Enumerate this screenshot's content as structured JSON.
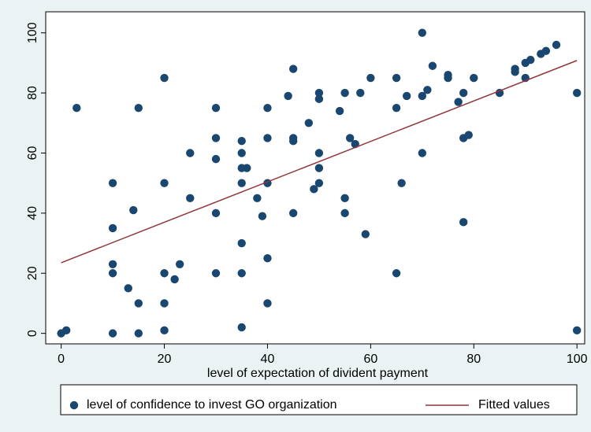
{
  "chart_data": {
    "type": "scatter",
    "xlabel": "level of expectation of divident payment",
    "xlim": [
      -3,
      101.5
    ],
    "ylim": [
      -3.5,
      107
    ],
    "xticks": [
      0,
      20,
      40,
      60,
      80,
      100
    ],
    "yticks": [
      0,
      20,
      40,
      60,
      80,
      100
    ],
    "legend": "bottom",
    "series": [
      {
        "name": "level of confidence to invest GO organization",
        "type": "scatter",
        "color": "#1a476f",
        "x": [
          0,
          1,
          3,
          10,
          10,
          10,
          10,
          10,
          13,
          14,
          15,
          15,
          15,
          20,
          20,
          20,
          20,
          20,
          22,
          23,
          25,
          25,
          30,
          30,
          30,
          30,
          30,
          35,
          35,
          35,
          35,
          35,
          35,
          35,
          36,
          38,
          39,
          40,
          40,
          40,
          40,
          40,
          44,
          45,
          45,
          45,
          45,
          48,
          49,
          50,
          50,
          50,
          50,
          50,
          54,
          55,
          55,
          55,
          56,
          57,
          58,
          59,
          60,
          65,
          65,
          65,
          66,
          67,
          70,
          70,
          70,
          71,
          72,
          75,
          75,
          77,
          78,
          78,
          78,
          79,
          80,
          85,
          88,
          88,
          90,
          90,
          91,
          93,
          94,
          96,
          100,
          100
        ],
        "y": [
          0,
          1,
          75,
          50,
          35,
          23,
          20,
          0,
          15,
          41,
          75,
          10,
          0,
          85,
          50,
          20,
          10,
          1,
          18,
          23,
          60,
          45,
          75,
          65,
          58,
          40,
          20,
          64,
          60,
          55,
          50,
          30,
          20,
          2,
          55,
          45,
          39,
          75,
          65,
          50,
          25,
          10,
          79,
          88,
          65,
          64,
          40,
          70,
          48,
          80,
          78,
          60,
          55,
          50,
          74,
          80,
          45,
          40,
          65,
          63,
          80,
          33,
          85,
          85,
          75,
          20,
          50,
          79,
          100,
          79,
          60,
          81,
          89,
          86,
          85,
          77,
          80,
          65,
          37,
          66,
          85,
          80,
          88,
          87,
          90,
          85,
          91,
          93,
          94,
          96,
          80,
          1
        ]
      },
      {
        "name": "Fitted values",
        "type": "line",
        "color": "#90353b",
        "x": [
          0,
          100
        ],
        "y": [
          23.5,
          90.8
        ]
      }
    ]
  }
}
